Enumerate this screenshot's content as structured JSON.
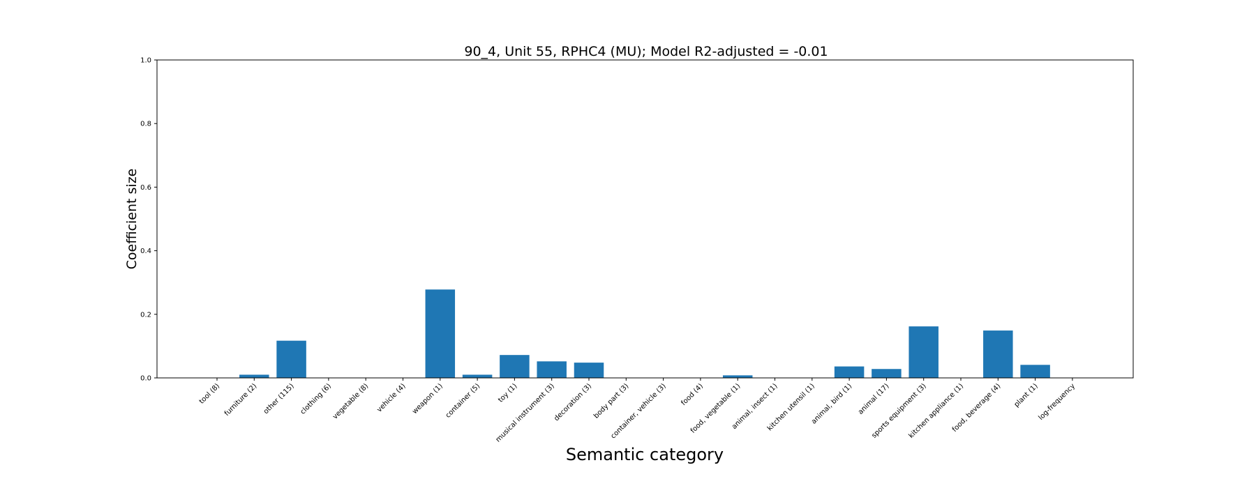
{
  "chart_data": {
    "type": "bar",
    "title": "90_4, Unit 55, RPHC4 (MU); Model R2-adjusted = -0.01",
    "xlabel": "Semantic category",
    "ylabel": "Coefficient size",
    "ylim": [
      0,
      1.0
    ],
    "yticks": [
      "0.0",
      "0.2",
      "0.4",
      "0.6",
      "0.8",
      "1.0"
    ],
    "bar_color": "#1f77b4",
    "grid": false,
    "categories": [
      "tool (8)",
      "furniture (2)",
      "other (115)",
      "clothing (6)",
      "vegetable (8)",
      "vehicle (4)",
      "weapon (1)",
      "container (5)",
      "toy (1)",
      "musical instrument (3)",
      "decoration (3)",
      "body part (3)",
      "container, vehicle (3)",
      "food (4)",
      "food, vegetable (1)",
      "animal, insect (1)",
      "kitchen utensil (1)",
      "animal, bird (1)",
      "animal (17)",
      "sports equipment (3)",
      "kitchen appliance (1)",
      "food, beverage (4)",
      "plant (1)",
      "log-frequency"
    ],
    "values": [
      0,
      0.01,
      0.117,
      0,
      0,
      0,
      0.278,
      0.01,
      0.072,
      0.052,
      0.048,
      0,
      0,
      0,
      0.008,
      0,
      0,
      0.036,
      0.028,
      0.162,
      0,
      0.149,
      0.041,
      0
    ]
  }
}
